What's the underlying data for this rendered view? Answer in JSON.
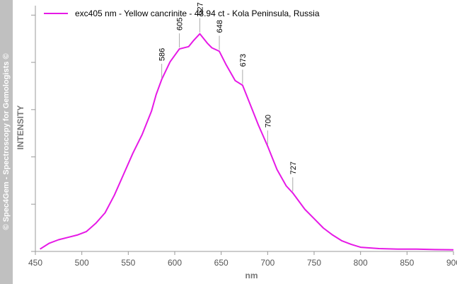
{
  "watermark": "© Spec4Gem - Spectroscopy for Gemologists ©",
  "chart_data": {
    "type": "line",
    "title": "",
    "xlabel": "nm",
    "ylabel": "INTENSITY",
    "xlim": [
      450,
      900
    ],
    "ylim": [
      0,
      1.05
    ],
    "xticks": [
      450,
      500,
      550,
      600,
      650,
      700,
      750,
      800,
      850,
      900
    ],
    "y_ticks_labeled": false,
    "grid": false,
    "legend_position": "top-left",
    "series": [
      {
        "name": "exc405 nm  - Yellow cancrinite - 43.94 ct - Kola Peninsula, Russia",
        "color": "#e619e6",
        "x": [
          455,
          465,
          475,
          485,
          495,
          505,
          515,
          525,
          535,
          545,
          555,
          565,
          575,
          580,
          586,
          595,
          605,
          615,
          620,
          627,
          635,
          640,
          648,
          655,
          665,
          673,
          680,
          690,
          700,
          710,
          720,
          727,
          740,
          750,
          760,
          770,
          780,
          790,
          800,
          820,
          840,
          860,
          880,
          900
        ],
        "y": [
          0.01,
          0.035,
          0.05,
          0.06,
          0.07,
          0.085,
          0.12,
          0.165,
          0.24,
          0.33,
          0.42,
          0.5,
          0.6,
          0.67,
          0.735,
          0.81,
          0.865,
          0.875,
          0.9,
          0.93,
          0.89,
          0.87,
          0.855,
          0.8,
          0.73,
          0.71,
          0.64,
          0.54,
          0.45,
          0.35,
          0.28,
          0.25,
          0.18,
          0.14,
          0.1,
          0.07,
          0.045,
          0.03,
          0.018,
          0.012,
          0.01,
          0.01,
          0.008,
          0.007
        ]
      }
    ],
    "peak_annotations": [
      {
        "x": 586,
        "y": 0.735,
        "label": "586"
      },
      {
        "x": 605,
        "y": 0.865,
        "label": "605"
      },
      {
        "x": 627,
        "y": 0.93,
        "label": "627"
      },
      {
        "x": 648,
        "y": 0.855,
        "label": "648"
      },
      {
        "x": 673,
        "y": 0.71,
        "label": "673"
      },
      {
        "x": 700,
        "y": 0.45,
        "label": "700"
      },
      {
        "x": 727,
        "y": 0.25,
        "label": "727"
      }
    ]
  }
}
